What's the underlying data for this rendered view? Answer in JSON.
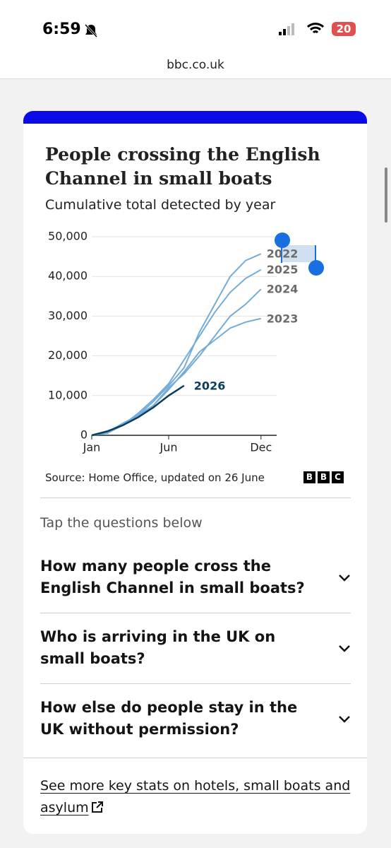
{
  "status_bar": {
    "time": "6:59",
    "battery": "20"
  },
  "address_bar": {
    "url": "bbc.co.uk"
  },
  "chart_data": {
    "type": "line",
    "title": "People crossing the English Channel in small boats",
    "subtitle": "Cumulative total detected by year",
    "categories": [
      "Jan",
      null,
      null,
      null,
      null,
      "Jun",
      null,
      null,
      null,
      null,
      null,
      "Dec"
    ],
    "series": [
      {
        "name": "2022",
        "color": "#74acd8",
        "values": [
          0,
          1000,
          2500,
          5000,
          8500,
          12500,
          17000,
          26000,
          33000,
          40000,
          44000,
          45700
        ]
      },
      {
        "name": "2025",
        "color": "#74acd8",
        "values": [
          0,
          800,
          2500,
          5500,
          9000,
          13000,
          19000,
          25000,
          31000,
          36000,
          39500,
          41700
        ]
      },
      {
        "name": "2024",
        "color": "#74acd8",
        "values": [
          0,
          500,
          2500,
          4500,
          7500,
          12000,
          15500,
          20000,
          25000,
          30000,
          33000,
          36800
        ]
      },
      {
        "name": "2023",
        "color": "#74acd8",
        "values": [
          0,
          700,
          3000,
          5000,
          7500,
          11500,
          16000,
          21000,
          24000,
          27000,
          28500,
          29400
        ]
      },
      {
        "name": "2026",
        "color": "#0b3d5e",
        "values": [
          0,
          1000,
          2500,
          4500,
          7000,
          10000,
          12500,
          null,
          null,
          null,
          null,
          null
        ]
      }
    ],
    "ylim": [
      0,
      50000
    ],
    "yticks": [
      0,
      {
        "value": 10000,
        "label": "10,000"
      },
      {
        "value": 20000,
        "label": "20,000"
      },
      {
        "value": 30000,
        "label": "30,000"
      },
      {
        "value": 40000,
        "label": "40,000"
      },
      {
        "value": 50000,
        "label": "50,000"
      }
    ],
    "grid": true,
    "source": "Source: Home Office, updated on 26 June"
  },
  "brand": [
    "B",
    "B",
    "C"
  ],
  "prompt": "Tap the questions below",
  "questions": [
    "How many people cross the English Channel in small boats?",
    "Who is arriving in the UK on small boats?",
    "How else do people stay in the UK without permission?"
  ],
  "link": "See more key stats on hotels, small boats and asylum"
}
